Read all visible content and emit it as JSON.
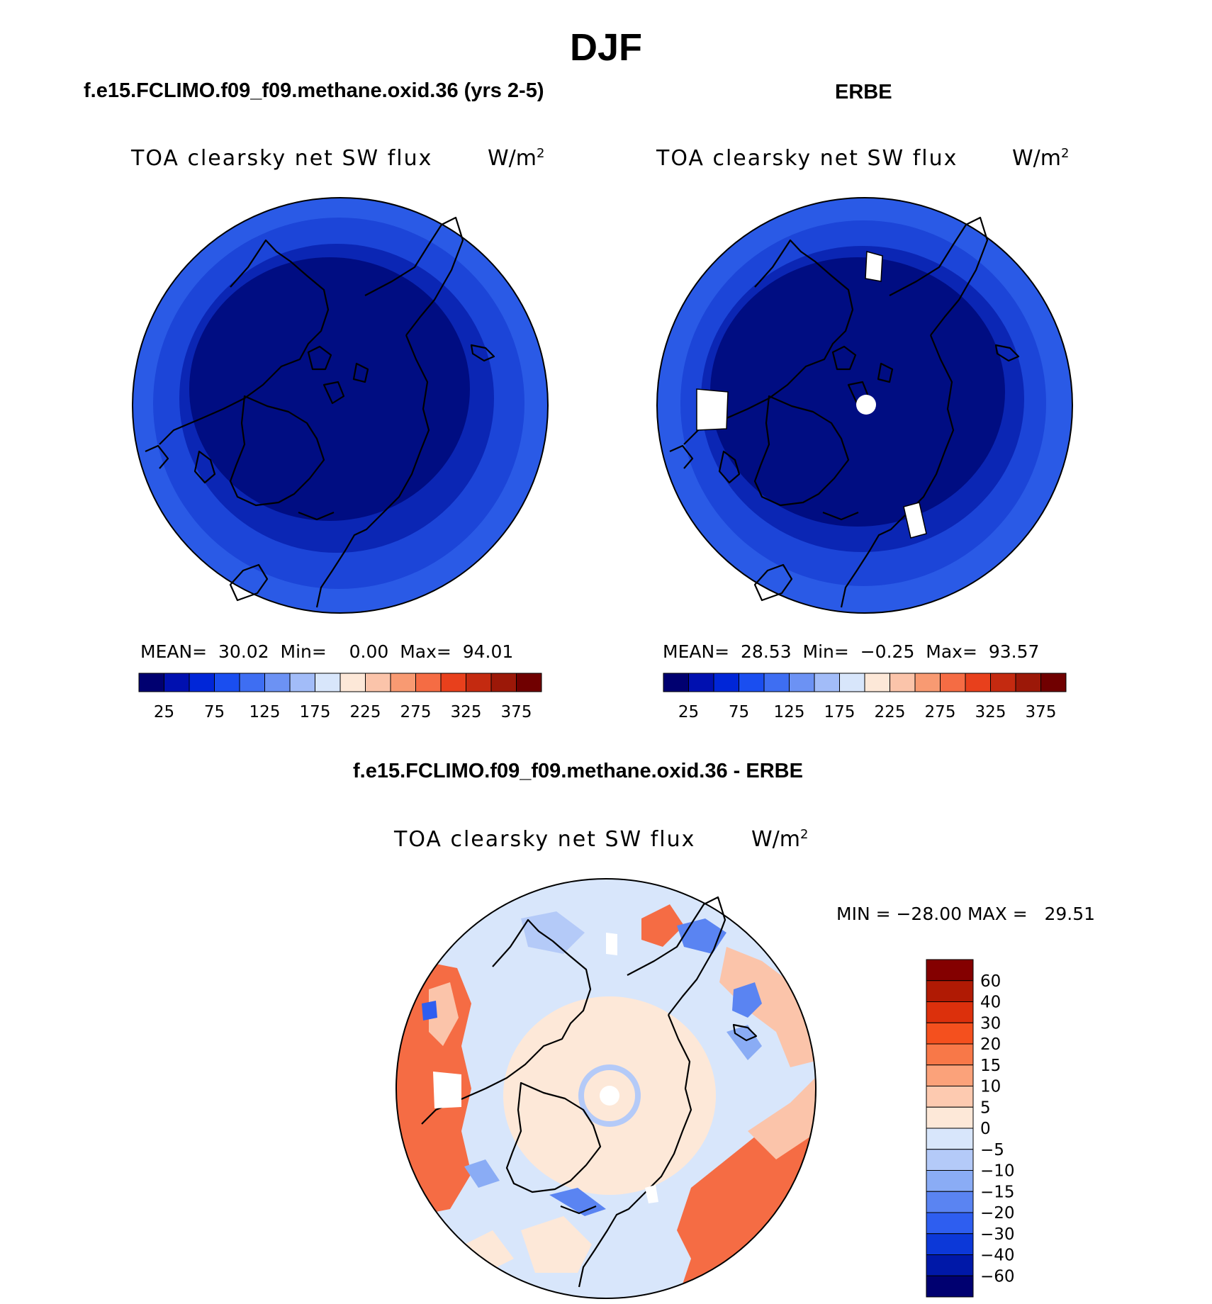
{
  "figure": {
    "title": "DJF"
  },
  "panels": [
    {
      "case_title": "f.e15.FCLIMO.f09_f09.methane.oxid.36 (yrs 2-5)",
      "variable": "TOA clearsky net SW flux",
      "units": "W/m",
      "units_exp": "2",
      "stats": {
        "mean_label": "MEAN=",
        "mean": "30.02",
        "min_label": "Min=",
        "min": "0.00",
        "max_label": "Max=",
        "max": "94.01"
      }
    },
    {
      "case_title": "ERBE",
      "variable": "TOA clearsky net SW flux",
      "units": "W/m",
      "units_exp": "2",
      "stats": {
        "mean_label": "MEAN=",
        "mean": "28.53",
        "min_label": "Min=",
        "min": "−0.25",
        "max_label": "Max=",
        "max": "93.57"
      }
    },
    {
      "case_title": "f.e15.FCLIMO.f09_f09.methane.oxid.36 - ERBE",
      "variable": "TOA clearsky net SW flux",
      "units": "W/m",
      "units_exp": "2",
      "stats_text": "MIN = −28.00 MAX =   29.51"
    }
  ],
  "colorbars": {
    "absolute": {
      "tick_labels": [
        "25",
        "75",
        "125",
        "175",
        "225",
        "275",
        "325",
        "375"
      ],
      "colors": [
        "#000070",
        "#0010b0",
        "#0026d8",
        "#1a4ef0",
        "#3e6ef2",
        "#6c92f4",
        "#a2bcf8",
        "#d8e6fb",
        "#fde8d8",
        "#fbc4aa",
        "#f89a72",
        "#f56c44",
        "#e8401c",
        "#c42a10",
        "#9c1808",
        "#700000"
      ]
    },
    "difference": {
      "tick_labels": [
        "60",
        "40",
        "30",
        "20",
        "15",
        "10",
        "5",
        "0",
        "−5",
        "−10",
        "−15",
        "−20",
        "−30",
        "−40",
        "−60"
      ],
      "colors": [
        "#840000",
        "#b01a04",
        "#dc300c",
        "#f4501e",
        "#f87848",
        "#fba27a",
        "#fdcab0",
        "#fde8d8",
        "#d8e6fb",
        "#b4caf8",
        "#8aacf5",
        "#5a84f2",
        "#2e5ef0",
        "#0c38d8",
        "#0018a8",
        "#000070"
      ]
    }
  },
  "map_colors": {
    "abs_ring1": "#2a5ae6",
    "abs_ring2": "#1c45d8",
    "abs_ring3": "#0b26b4",
    "abs_core": "#000d82",
    "coast": "#000000",
    "missing": "#ffffff",
    "diff_base": "#d8e6fb",
    "diff_pos_light": "#fde8d8",
    "diff_pos_mid": "#fbc4aa",
    "diff_pos_strong": "#f56c44",
    "diff_neg_light": "#b4caf8",
    "diff_neg_strong": "#2e5ef0"
  }
}
